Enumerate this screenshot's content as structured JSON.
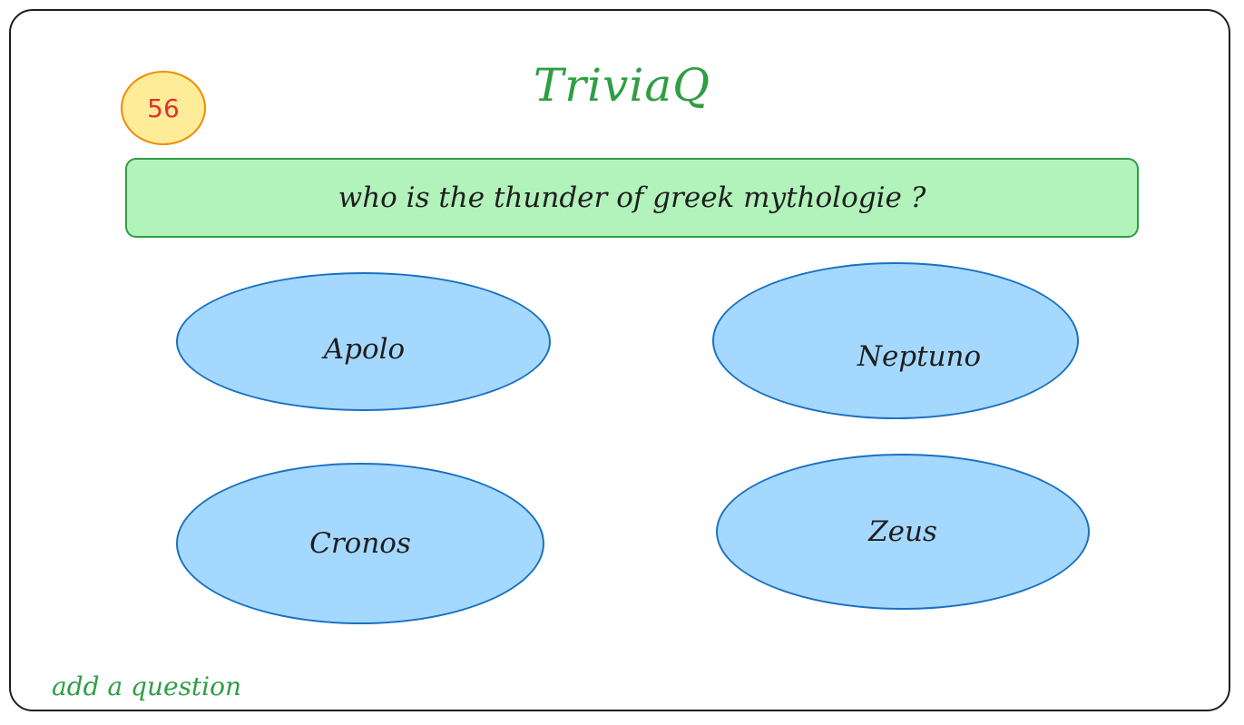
{
  "app": {
    "title": "TriviaQ"
  },
  "timer": {
    "value": "56"
  },
  "question": {
    "text": "who is the thunder of greek mythologie ?"
  },
  "answers": [
    {
      "label": "Apolo"
    },
    {
      "label": "Neptuno"
    },
    {
      "label": "Cronos"
    },
    {
      "label": "Zeus"
    }
  ],
  "footer": {
    "add_question_label": "add a question"
  },
  "colors": {
    "title": "#2f9e44",
    "timer_fill": "#ffec99",
    "timer_border": "#f08c00",
    "timer_text": "#e03131",
    "question_fill": "#b2f2bb",
    "question_border": "#2f9e44",
    "answer_fill": "#a5d8ff",
    "answer_border": "#1971c2",
    "link": "#2f9e44"
  }
}
